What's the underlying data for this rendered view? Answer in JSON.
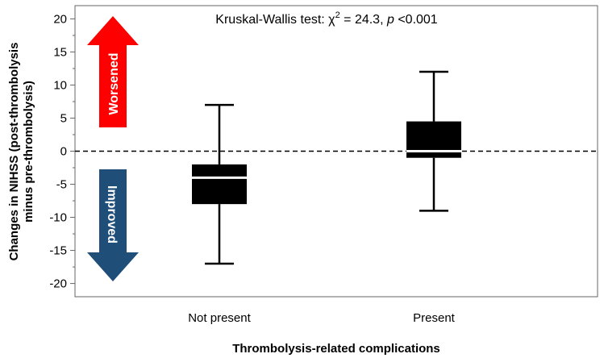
{
  "chart_data": {
    "type": "box",
    "xlabel": "Thrombolysis-related complications",
    "ylabel_line1": "Changes in NIHSS (post-thrombolysis",
    "ylabel_line2": "minus pre-thrombolysis)",
    "ylim": [
      -22,
      22
    ],
    "yticks": [
      -20,
      -15,
      -10,
      -5,
      0,
      5,
      10,
      15,
      20
    ],
    "ytick_labels": [
      "-20",
      "-15",
      "-10",
      "-5",
      "0",
      "5",
      "10",
      "15",
      "20"
    ],
    "reference_line": 0,
    "categories": [
      "Not present",
      "Present"
    ],
    "boxes": [
      {
        "label": "Not present",
        "whisker_low": -17,
        "q1": -8,
        "median": -4,
        "q3": -2,
        "whisker_high": 7
      },
      {
        "label": "Present",
        "whisker_low": -9,
        "q1": -1,
        "median": 0,
        "q3": 4.5,
        "whisker_high": 12
      }
    ],
    "annotation": {
      "prefix": "Kruskal-Wallis test: ",
      "stat_symbol": "χ",
      "superscript": "2",
      "middle": " = 24.3, ",
      "p_symbol": "p",
      "suffix": " <0.001"
    },
    "arrows": [
      {
        "label": "Worsened",
        "direction": "up",
        "color": "#ff0000"
      },
      {
        "label": "Improved",
        "direction": "down",
        "color": "#1f4e79"
      }
    ],
    "colors": {
      "box": "#000000",
      "median": "#ffffff",
      "grid": "none"
    }
  }
}
